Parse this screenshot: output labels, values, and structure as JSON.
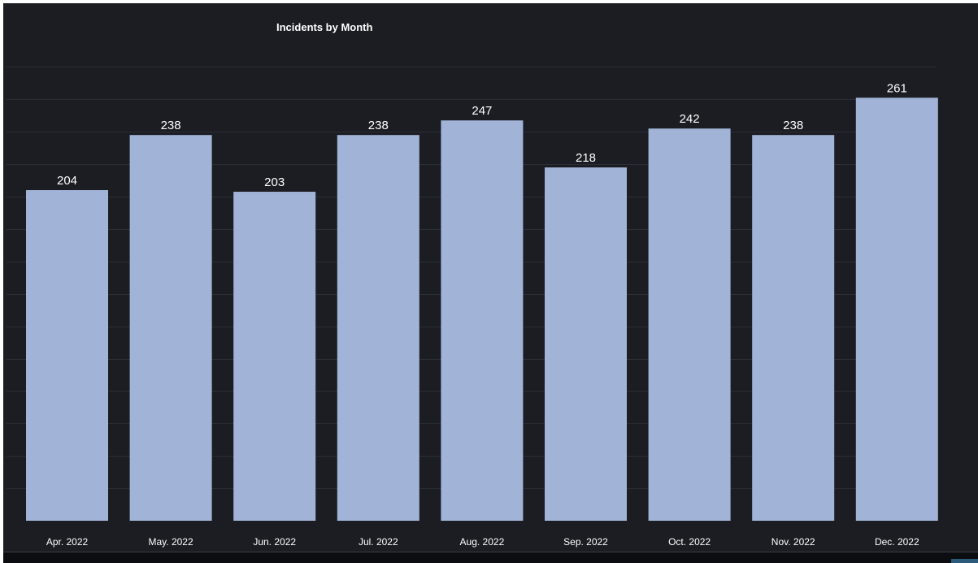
{
  "chart_data": {
    "type": "bar",
    "title": "Incidents by Month",
    "xlabel": "",
    "ylabel": "",
    "categories": [
      "Apr. 2022",
      "May. 2022",
      "Jun. 2022",
      "Jul. 2022",
      "Aug. 2022",
      "Sep. 2022",
      "Oct. 2022",
      "Nov. 2022",
      "Dec. 2022"
    ],
    "values": [
      204,
      238,
      203,
      238,
      247,
      218,
      242,
      238,
      261
    ],
    "ylim": [
      0,
      280
    ],
    "grid": true,
    "legend": "none",
    "colors": {
      "background": "#1b1d22",
      "bar": "#a1b3d6",
      "grid": "#2b2e35",
      "text": "#ffffff"
    }
  }
}
